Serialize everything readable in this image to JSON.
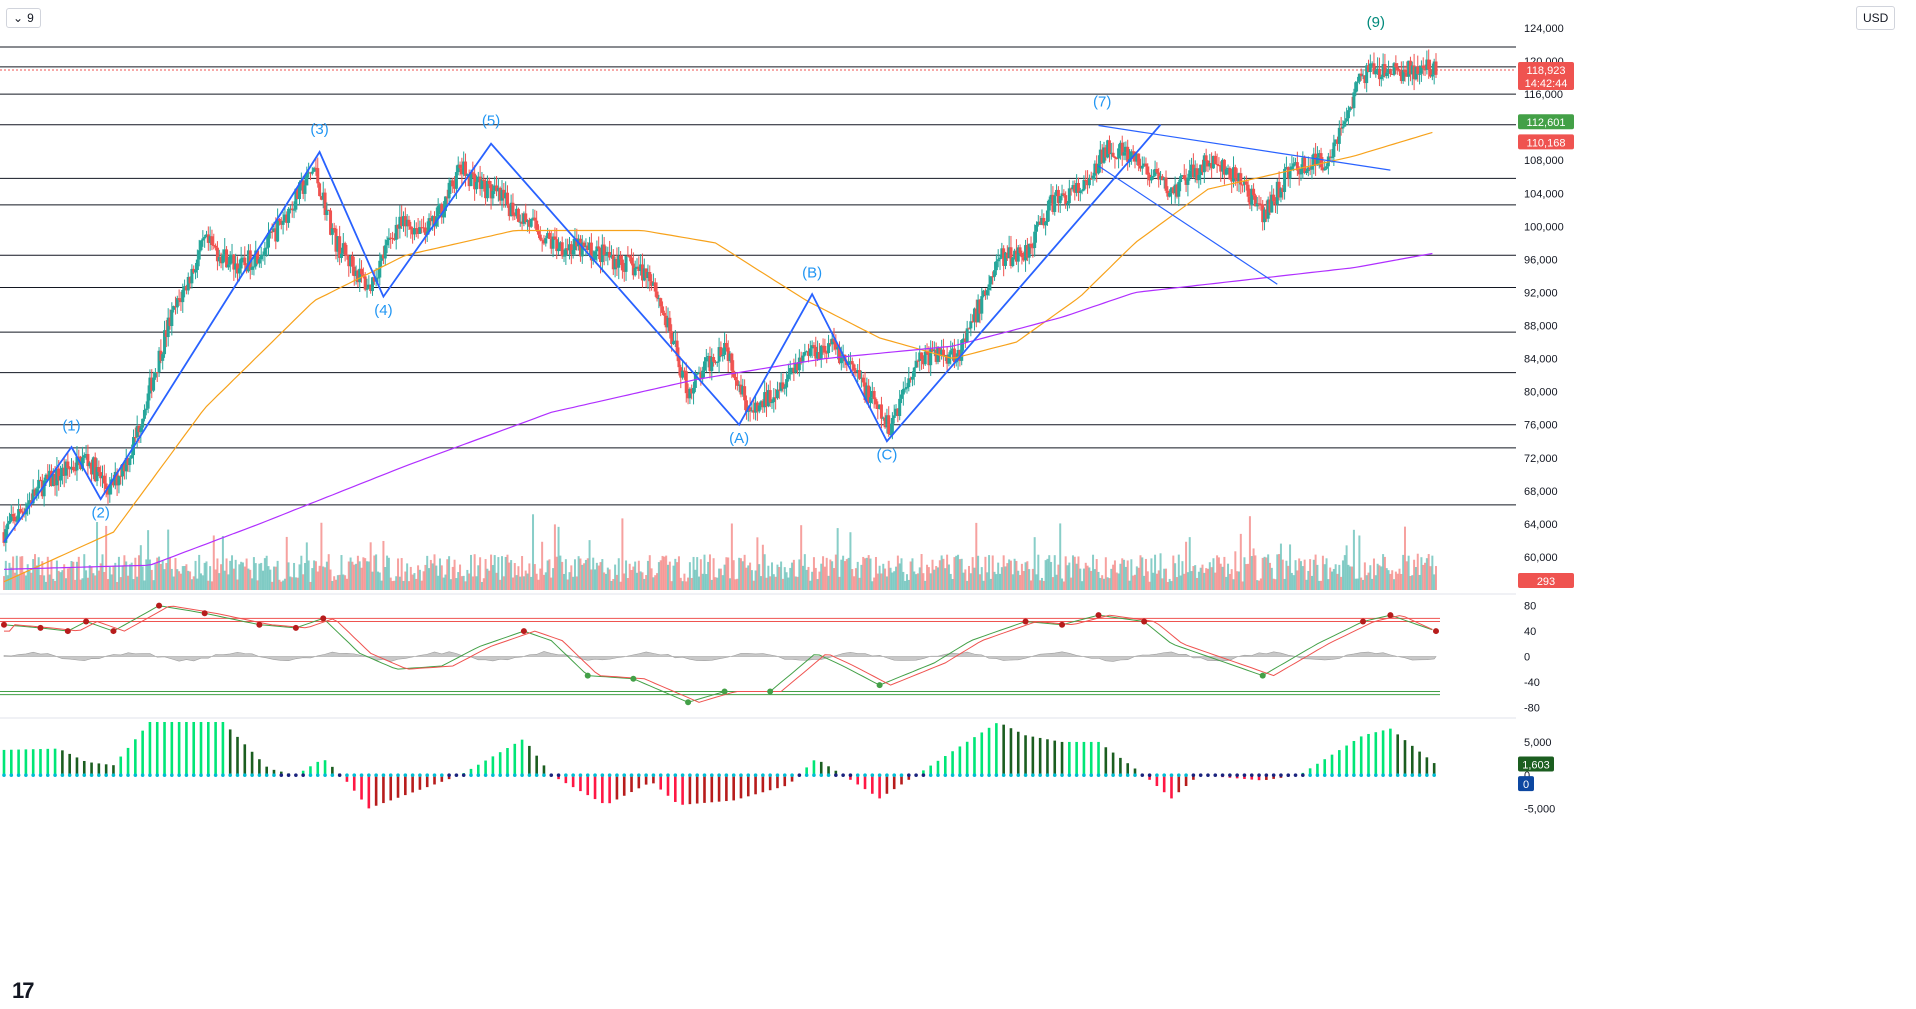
{
  "toolbar": {
    "interval_label": "9",
    "currency": "USD",
    "chevron_glyph": "⌄"
  },
  "branding": {
    "logo_text": "17"
  },
  "colors": {
    "bull": "#26a69a",
    "bear": "#ef5350",
    "wave": "#2962ff",
    "wave_label": "#2196f3",
    "wave_label_teal": "#00897b",
    "ma_orange": "#f7a21b",
    "ma_purple": "#b02fff",
    "hline": "#131722",
    "stoch_k": "#43a047",
    "stoch_d": "#ef5350",
    "macd_bright_green": "#00e676",
    "macd_dark_green": "#1b5e20",
    "macd_red": "#ff1744",
    "macd_dark_red": "#b71c1c",
    "zero_dot_navy": "#1a237e",
    "zero_dot_cyan": "#00bcd4"
  },
  "chart_data": {
    "type": "candlestick",
    "symbol_currency": "USD",
    "price_axis": {
      "ylim": [
        56000,
        124000
      ],
      "tick_labels": [
        "124,000",
        "120,000",
        "116,000",
        "108,000",
        "104,000",
        "100,000",
        "96,000",
        "92,000",
        "88,000",
        "84,000",
        "80,000",
        "76,000",
        "72,000",
        "68,000",
        "64,000",
        "60,000"
      ]
    },
    "price_badges": [
      {
        "label": "118,923",
        "sublabel": "14:42:44",
        "color": "#ef5350",
        "value": 118923
      },
      {
        "label": "112,601",
        "color": "#43a047",
        "value": 112601
      },
      {
        "label": "110,168",
        "color": "#ef5350",
        "value": 110168
      },
      {
        "label": "293",
        "color": "#ef5350",
        "value": 293
      }
    ],
    "horizontal_levels": [
      121700,
      119300,
      116000,
      112300,
      105800,
      102600,
      96500,
      92600,
      87200,
      82300,
      76000,
      73200,
      66300
    ],
    "last_price_line": 118923,
    "anchors": [
      {
        "i": 0,
        "p": 63000
      },
      {
        "i": 20,
        "p": 68500
      },
      {
        "i": 45,
        "p": 72000
      },
      {
        "i": 58,
        "p": 68000
      },
      {
        "i": 70,
        "p": 73000
      },
      {
        "i": 90,
        "p": 88000
      },
      {
        "i": 110,
        "p": 98000
      },
      {
        "i": 130,
        "p": 95000
      },
      {
        "i": 145,
        "p": 98000
      },
      {
        "i": 170,
        "p": 107000
      },
      {
        "i": 182,
        "p": 98000
      },
      {
        "i": 200,
        "p": 92500
      },
      {
        "i": 215,
        "p": 100000
      },
      {
        "i": 235,
        "p": 100000
      },
      {
        "i": 250,
        "p": 107000
      },
      {
        "i": 280,
        "p": 102000
      },
      {
        "i": 300,
        "p": 98000
      },
      {
        "i": 330,
        "p": 96500
      },
      {
        "i": 355,
        "p": 94000
      },
      {
        "i": 375,
        "p": 80000
      },
      {
        "i": 395,
        "p": 86000
      },
      {
        "i": 410,
        "p": 77000
      },
      {
        "i": 440,
        "p": 85000
      },
      {
        "i": 455,
        "p": 85500
      },
      {
        "i": 470,
        "p": 81000
      },
      {
        "i": 485,
        "p": 75500
      },
      {
        "i": 500,
        "p": 84000
      },
      {
        "i": 525,
        "p": 85000
      },
      {
        "i": 545,
        "p": 96000
      },
      {
        "i": 560,
        "p": 97000
      },
      {
        "i": 575,
        "p": 103000
      },
      {
        "i": 595,
        "p": 105000
      },
      {
        "i": 605,
        "p": 110000
      },
      {
        "i": 625,
        "p": 107000
      },
      {
        "i": 640,
        "p": 104000
      },
      {
        "i": 660,
        "p": 108000
      },
      {
        "i": 680,
        "p": 105000
      },
      {
        "i": 690,
        "p": 101000
      },
      {
        "i": 705,
        "p": 107000
      },
      {
        "i": 725,
        "p": 108000
      },
      {
        "i": 735,
        "p": 113000
      },
      {
        "i": 745,
        "p": 118500
      },
      {
        "i": 770,
        "p": 118800
      },
      {
        "i": 785,
        "p": 118923
      }
    ],
    "candle_count": 786,
    "wave_path": [
      {
        "i": 0,
        "p": 61800
      },
      {
        "i": 37,
        "p": 73300
      },
      {
        "i": 53,
        "p": 67000
      },
      {
        "i": 173,
        "p": 109000
      },
      {
        "i": 208,
        "p": 91500
      },
      {
        "i": 267,
        "p": 110000
      },
      {
        "i": 403,
        "p": 76000
      },
      {
        "i": 443,
        "p": 91800
      },
      {
        "i": 484,
        "p": 74000
      },
      {
        "i": 634,
        "p": 112300
      }
    ],
    "wave_labels": [
      {
        "text": "(1)",
        "i": 37,
        "p": 75300
      },
      {
        "text": "(2)",
        "i": 53,
        "p": 64800
      },
      {
        "text": "(3)",
        "i": 173,
        "p": 111200
      },
      {
        "text": "(4)",
        "i": 208,
        "p": 89300
      },
      {
        "text": "(5)",
        "i": 267,
        "p": 112200
      },
      {
        "text": "(A)",
        "i": 403,
        "p": 73800
      },
      {
        "text": "(B)",
        "i": 443,
        "p": 93800
      },
      {
        "text": "(C)",
        "i": 484,
        "p": 71800
      },
      {
        "text": "(7)",
        "i": 602,
        "p": 114500
      },
      {
        "text": "(9)",
        "i": 752,
        "p": 124100
      }
    ],
    "trendlines": [
      {
        "from": {
          "i": 600,
          "p": 112200
        },
        "to": {
          "i": 760,
          "p": 106800
        }
      },
      {
        "from": {
          "i": 600,
          "p": 107300
        },
        "to": {
          "i": 698,
          "p": 93000
        }
      }
    ],
    "ma_orange": [
      {
        "i": 0,
        "p": 57000
      },
      {
        "i": 60,
        "p": 63000
      },
      {
        "i": 110,
        "p": 78000
      },
      {
        "i": 170,
        "p": 91000
      },
      {
        "i": 220,
        "p": 96500
      },
      {
        "i": 280,
        "p": 99500
      },
      {
        "i": 350,
        "p": 99500
      },
      {
        "i": 390,
        "p": 98000
      },
      {
        "i": 440,
        "p": 91000
      },
      {
        "i": 480,
        "p": 86500
      },
      {
        "i": 520,
        "p": 84000
      },
      {
        "i": 555,
        "p": 86000
      },
      {
        "i": 590,
        "p": 91500
      },
      {
        "i": 620,
        "p": 98000
      },
      {
        "i": 660,
        "p": 104500
      },
      {
        "i": 700,
        "p": 106500
      },
      {
        "i": 740,
        "p": 108500
      },
      {
        "i": 785,
        "p": 111500
      }
    ],
    "ma_purple": [
      {
        "i": 0,
        "p": 58500
      },
      {
        "i": 80,
        "p": 59000
      },
      {
        "i": 140,
        "p": 64000
      },
      {
        "i": 220,
        "p": 71000
      },
      {
        "i": 300,
        "p": 77500
      },
      {
        "i": 380,
        "p": 81500
      },
      {
        "i": 450,
        "p": 84000
      },
      {
        "i": 520,
        "p": 85500
      },
      {
        "i": 580,
        "p": 89000
      },
      {
        "i": 620,
        "p": 92000
      },
      {
        "i": 680,
        "p": 93500
      },
      {
        "i": 740,
        "p": 95000
      },
      {
        "i": 785,
        "p": 96800
      }
    ],
    "stochastic": {
      "ylim": [
        -92,
        92
      ],
      "tick_labels": [
        "80",
        "40",
        "0",
        "-40",
        "-80"
      ],
      "tick_values": [
        80,
        40,
        0,
        -40,
        -80
      ],
      "band_levels": [
        60,
        55,
        -55,
        -60
      ],
      "k_anchors": [
        {
          "i": 0,
          "p": 50
        },
        {
          "i": 20,
          "p": 45
        },
        {
          "i": 35,
          "p": 40
        },
        {
          "i": 45,
          "p": 55
        },
        {
          "i": 60,
          "p": 40
        },
        {
          "i": 85,
          "p": 80
        },
        {
          "i": 110,
          "p": 68
        },
        {
          "i": 140,
          "p": 50
        },
        {
          "i": 160,
          "p": 45
        },
        {
          "i": 175,
          "p": 60
        },
        {
          "i": 195,
          "p": 5
        },
        {
          "i": 215,
          "p": -20
        },
        {
          "i": 240,
          "p": -15
        },
        {
          "i": 260,
          "p": 15
        },
        {
          "i": 285,
          "p": 40
        },
        {
          "i": 300,
          "p": 25
        },
        {
          "i": 320,
          "p": -30
        },
        {
          "i": 345,
          "p": -35
        },
        {
          "i": 375,
          "p": -72
        },
        {
          "i": 395,
          "p": -55
        },
        {
          "i": 420,
          "p": -55
        },
        {
          "i": 445,
          "p": 5
        },
        {
          "i": 460,
          "p": -15
        },
        {
          "i": 480,
          "p": -45
        },
        {
          "i": 510,
          "p": -10
        },
        {
          "i": 530,
          "p": 25
        },
        {
          "i": 560,
          "p": 55
        },
        {
          "i": 580,
          "p": 50
        },
        {
          "i": 600,
          "p": 65
        },
        {
          "i": 625,
          "p": 55
        },
        {
          "i": 640,
          "p": 20
        },
        {
          "i": 660,
          "p": 0
        },
        {
          "i": 690,
          "p": -30
        },
        {
          "i": 720,
          "p": 20
        },
        {
          "i": 745,
          "p": 55
        },
        {
          "i": 760,
          "p": 65
        },
        {
          "i": 785,
          "p": 40
        }
      ],
      "momentum_area": "grey"
    },
    "macd": {
      "ylim": [
        -7500,
        8000
      ],
      "tick_labels": [
        "5,000",
        "0",
        "-5,000"
      ],
      "tick_values": [
        5000,
        0,
        -5000
      ],
      "last_value": "1,603",
      "zero_badge": "0",
      "anchors": [
        {
          "i": 0,
          "p": 3800
        },
        {
          "i": 30,
          "p": 4000
        },
        {
          "i": 45,
          "p": 2000
        },
        {
          "i": 60,
          "p": 1500
        },
        {
          "i": 80,
          "p": 8000
        },
        {
          "i": 120,
          "p": 8000
        },
        {
          "i": 145,
          "p": 1000
        },
        {
          "i": 160,
          "p": 0
        },
        {
          "i": 175,
          "p": 2500
        },
        {
          "i": 185,
          "p": 0
        },
        {
          "i": 200,
          "p": -5000
        },
        {
          "i": 220,
          "p": -3000
        },
        {
          "i": 250,
          "p": 0
        },
        {
          "i": 285,
          "p": 5500
        },
        {
          "i": 300,
          "p": 0
        },
        {
          "i": 330,
          "p": -4500
        },
        {
          "i": 355,
          "p": -1000
        },
        {
          "i": 370,
          "p": -4500
        },
        {
          "i": 400,
          "p": -3800
        },
        {
          "i": 430,
          "p": -1500
        },
        {
          "i": 445,
          "p": 2500
        },
        {
          "i": 460,
          "p": 0
        },
        {
          "i": 480,
          "p": -3500
        },
        {
          "i": 500,
          "p": 0
        },
        {
          "i": 525,
          "p": 4500
        },
        {
          "i": 545,
          "p": 8000
        },
        {
          "i": 560,
          "p": 6000
        },
        {
          "i": 580,
          "p": 5000
        },
        {
          "i": 600,
          "p": 5000
        },
        {
          "i": 625,
          "p": 0
        },
        {
          "i": 640,
          "p": -3500
        },
        {
          "i": 655,
          "p": 0
        },
        {
          "i": 690,
          "p": -800
        },
        {
          "i": 710,
          "p": 0
        },
        {
          "i": 745,
          "p": 6000
        },
        {
          "i": 760,
          "p": 7000
        },
        {
          "i": 785,
          "p": 1603
        }
      ]
    }
  }
}
